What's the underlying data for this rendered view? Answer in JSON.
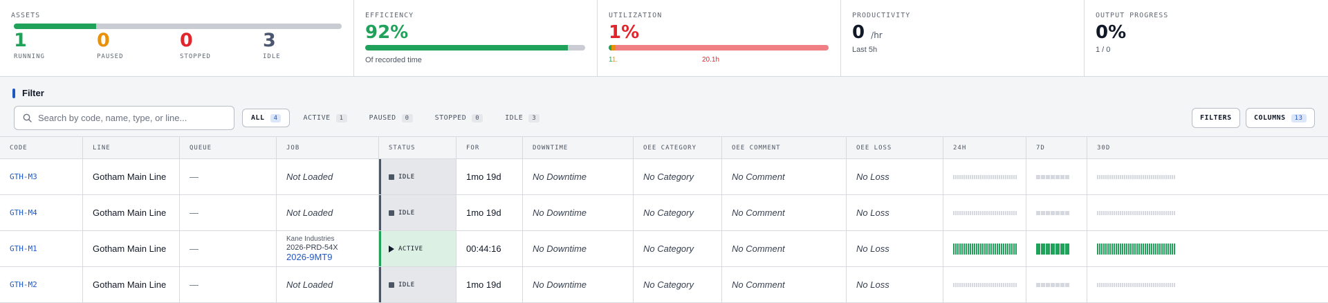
{
  "stats": {
    "assets": {
      "label": "ASSETS",
      "counts": [
        {
          "value": "1",
          "label": "RUNNING",
          "color": "#21a25a"
        },
        {
          "value": "0",
          "label": "PAUSED",
          "color": "#e8920c"
        },
        {
          "value": "0",
          "label": "STOPPED",
          "color": "#e0262c"
        },
        {
          "value": "3",
          "label": "IDLE",
          "color": "#4b5670"
        }
      ],
      "running_share": 0.25
    },
    "efficiency": {
      "label": "EFFICIENCY",
      "value": "92%",
      "caption": "Of recorded time",
      "fill": 0.92,
      "color": "#21a25a"
    },
    "utilization": {
      "label": "UTILIZATION",
      "value": "1%",
      "left_note": "1",
      "left_note_2": "1.",
      "right_note": "20.1h",
      "color": "#e0262c"
    },
    "productivity": {
      "label": "PRODUCTIVITY",
      "value": "0",
      "unit": "/hr",
      "caption": "Last 5h"
    },
    "output": {
      "label": "OUTPUT PROGRESS",
      "value": "0%",
      "caption": "1 / 0"
    }
  },
  "filter": {
    "title": "Filter",
    "search_placeholder": "Search by code, name, type, or line...",
    "chips": [
      {
        "label": "ALL",
        "count": "4"
      },
      {
        "label": "ACTIVE",
        "count": "1"
      },
      {
        "label": "PAUSED",
        "count": "0"
      },
      {
        "label": "STOPPED",
        "count": "0"
      },
      {
        "label": "IDLE",
        "count": "3"
      }
    ],
    "filters_button": "FILTERS",
    "columns_button": "COLUMNS",
    "columns_count": "13"
  },
  "table": {
    "headers": [
      "CODE",
      "LINE",
      "QUEUE",
      "JOB",
      "STATUS",
      "FOR",
      "DOWNTIME",
      "OEE CATEGORY",
      "OEE COMMENT",
      "OEE LOSS",
      "24H",
      "7D",
      "30D"
    ],
    "rows": [
      {
        "code": "GTH-M3",
        "line": "Gotham Main Line",
        "queue": "—",
        "job": "Not Loaded",
        "status": "IDLE",
        "for": "1mo 19d",
        "downtime": "No Downtime",
        "oee_category": "No Category",
        "oee_comment": "No Comment",
        "oee_loss": "No Loss"
      },
      {
        "code": "GTH-M4",
        "line": "Gotham Main Line",
        "queue": "—",
        "job": "Not Loaded",
        "status": "IDLE",
        "for": "1mo 19d",
        "downtime": "No Downtime",
        "oee_category": "No Category",
        "oee_comment": "No Comment",
        "oee_loss": "No Loss"
      },
      {
        "code": "GTH-M1",
        "line": "Gotham Main Line",
        "queue": "—",
        "job_customer": "Kane Industries",
        "job_number": "2026-PRD-54X",
        "job_link": "2026-9MT9",
        "status": "ACTIVE",
        "for": "00:44:16",
        "downtime": "No Downtime",
        "oee_category": "No Category",
        "oee_comment": "No Comment",
        "oee_loss": "No Loss"
      },
      {
        "code": "GTH-M2",
        "line": "Gotham Main Line",
        "queue": "—",
        "job": "Not Loaded",
        "status": "IDLE",
        "for": "1mo 19d",
        "downtime": "No Downtime",
        "oee_category": "No Category",
        "oee_comment": "No Comment",
        "oee_loss": "No Loss"
      }
    ],
    "spark_colors": {
      "active": "#21a25a",
      "idle": "#d5d8de"
    }
  }
}
